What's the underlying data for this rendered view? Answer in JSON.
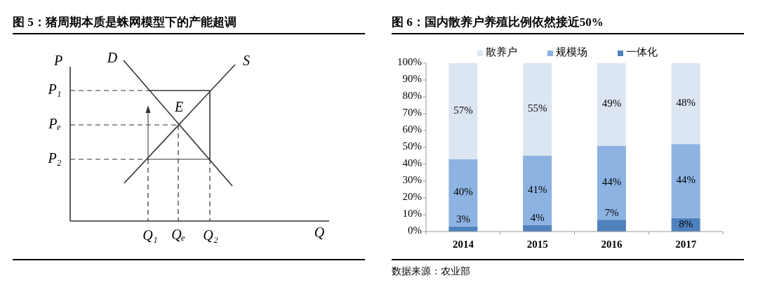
{
  "chart_data": [
    {
      "type": "other",
      "title": "图 5：猪周期本质是蛛网模型下的产能超调",
      "annotations": [
        "P",
        "D",
        "S",
        "P₁",
        "Pₑ",
        "P₂",
        "E",
        "Q₁",
        "Qₑ",
        "Q₂",
        "Q"
      ]
    },
    {
      "type": "bar",
      "title": "图 6：国内散养户养殖比例依然接近50%",
      "stacked": true,
      "legend": "top",
      "categories": [
        "2014",
        "2015",
        "2016",
        "2017"
      ],
      "series": [
        {
          "name": "一体化",
          "color": "#4f81bd",
          "values": [
            3,
            4,
            7,
            8
          ],
          "value_labels": [
            "3%",
            "4%",
            "7%",
            "8%"
          ]
        },
        {
          "name": "规模场",
          "color": "#8db3e2",
          "values": [
            40,
            41,
            44,
            44
          ],
          "value_labels": [
            "40%",
            "41%",
            "44%",
            "44%"
          ]
        },
        {
          "name": "散养户",
          "color": "#dce6f2",
          "values": [
            57,
            55,
            49,
            48
          ],
          "value_labels": [
            "57%",
            "55%",
            "49%",
            "48%"
          ]
        }
      ],
      "ylim": [
        0,
        100
      ],
      "yticks": [
        {
          "value": 0,
          "label": "0%"
        },
        {
          "value": 10,
          "label": "10%"
        },
        {
          "value": 20,
          "label": "20%"
        },
        {
          "value": 30,
          "label": "30%"
        },
        {
          "value": 40,
          "label": "40%"
        },
        {
          "value": 50,
          "label": "50%"
        },
        {
          "value": 60,
          "label": "60%"
        },
        {
          "value": 70,
          "label": "70%"
        },
        {
          "value": 80,
          "label": "80%"
        },
        {
          "value": 90,
          "label": "90%"
        },
        {
          "value": 100,
          "label": "100%"
        }
      ],
      "annotations": [
        "数据来源：农业部"
      ]
    }
  ]
}
